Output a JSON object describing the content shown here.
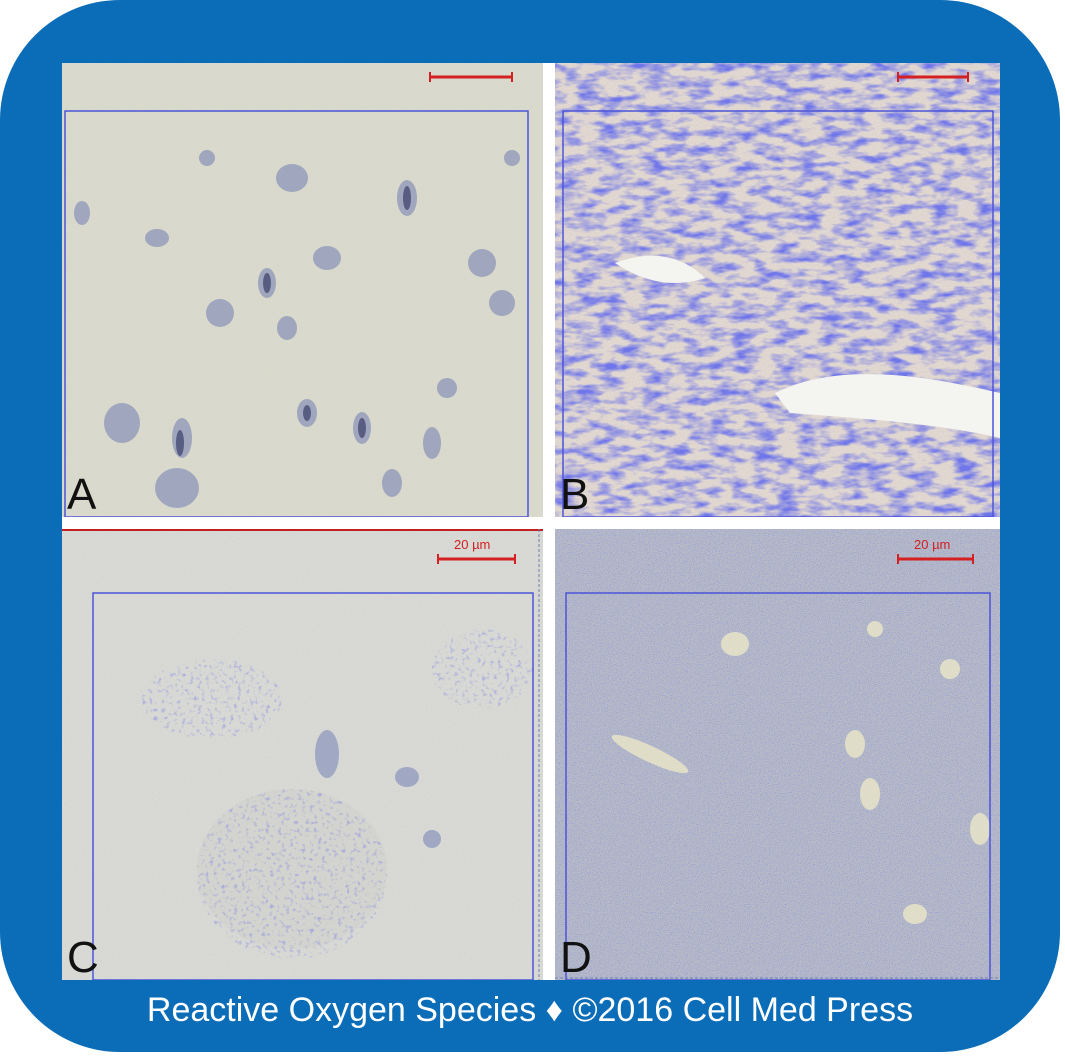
{
  "figure": {
    "colors": {
      "frame": "#0b6db8",
      "caption_text": "#ffffff",
      "scale_bar": "#d42020",
      "stain_blue": "#2a2fd0",
      "tissue_bg": "#d9d9cc"
    },
    "panels": [
      {
        "id": "A",
        "letter": "A",
        "scale_label": "",
        "staining": "light"
      },
      {
        "id": "B",
        "letter": "B",
        "scale_label": "",
        "staining": "heavy"
      },
      {
        "id": "C",
        "letter": "C",
        "scale_label": "20 µm",
        "staining": "moderate"
      },
      {
        "id": "D",
        "letter": "D",
        "scale_label": "20 µm",
        "staining": "diffuse"
      }
    ],
    "caption": "Reactive Oxygen Species ♦ ©2016 Cell Med Press"
  }
}
